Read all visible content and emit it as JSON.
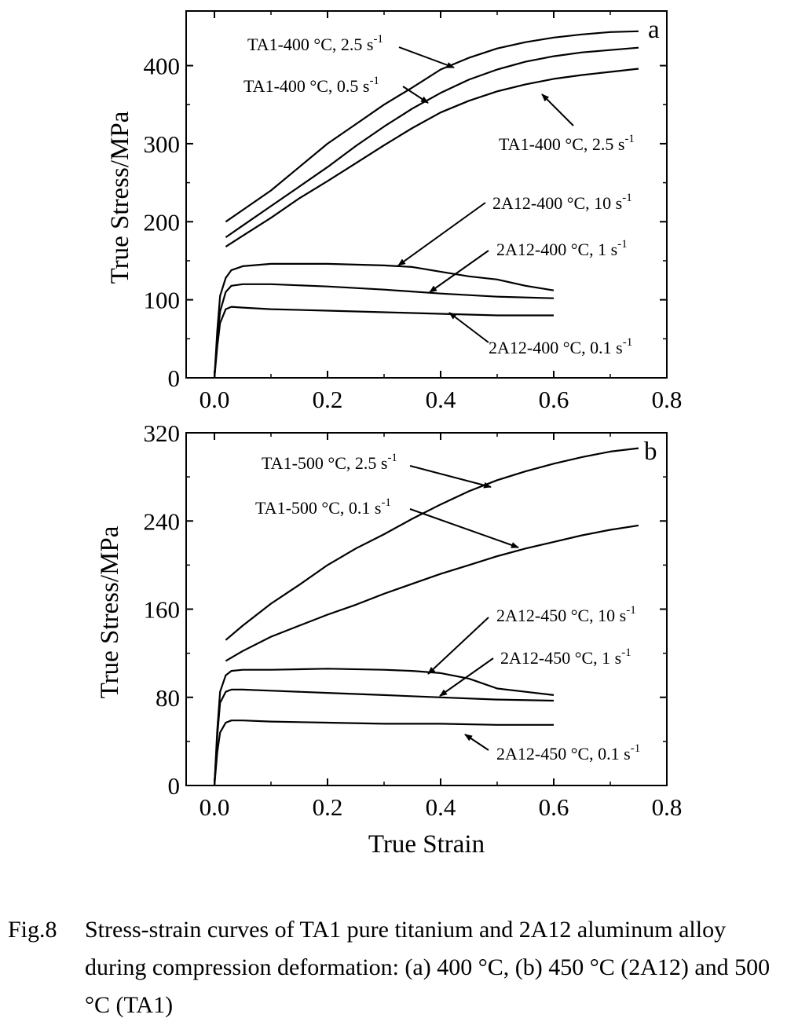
{
  "chart_data": [
    {
      "type": "line",
      "panel_label": "a",
      "xlabel": "",
      "ylabel": "True Stress/MPa",
      "xlim": [
        -0.05,
        0.8
      ],
      "ylim": [
        0,
        470
      ],
      "xticks": [
        "0.0",
        "0.2",
        "0.4",
        "0.6",
        "0.8"
      ],
      "yticks": [
        "0",
        "100",
        "200",
        "300",
        "400"
      ],
      "grid": false,
      "series": [
        {
          "name": "TA1-400 °C, 2.5 s",
          "name_sup": "-1",
          "x": [
            0.02,
            0.05,
            0.1,
            0.15,
            0.2,
            0.25,
            0.3,
            0.35,
            0.4,
            0.45,
            0.5,
            0.55,
            0.6,
            0.65,
            0.7,
            0.75
          ],
          "y": [
            200,
            215,
            240,
            270,
            300,
            325,
            350,
            372,
            395,
            410,
            422,
            430,
            436,
            440,
            443,
            444
          ]
        },
        {
          "name": "TA1-400 °C, 0.5 s",
          "name_sup": "-1",
          "x": [
            0.02,
            0.05,
            0.1,
            0.15,
            0.2,
            0.25,
            0.3,
            0.35,
            0.4,
            0.45,
            0.5,
            0.55,
            0.6,
            0.65,
            0.7,
            0.75
          ],
          "y": [
            180,
            195,
            220,
            245,
            270,
            297,
            322,
            345,
            365,
            382,
            395,
            405,
            412,
            417,
            420,
            423
          ]
        },
        {
          "name": "TA1-400 °C, 2.5 s",
          "name_sup": "-1",
          "x": [
            0.02,
            0.05,
            0.1,
            0.15,
            0.2,
            0.25,
            0.3,
            0.35,
            0.4,
            0.45,
            0.5,
            0.55,
            0.6,
            0.65,
            0.7,
            0.75
          ],
          "y": [
            168,
            182,
            205,
            230,
            252,
            275,
            298,
            320,
            340,
            355,
            367,
            376,
            383,
            388,
            392,
            396
          ]
        },
        {
          "name": "2A12-400 °C, 10 s",
          "name_sup": "-1",
          "x": [
            0.0,
            0.005,
            0.01,
            0.02,
            0.03,
            0.05,
            0.1,
            0.2,
            0.3,
            0.35,
            0.4,
            0.45,
            0.5,
            0.55,
            0.6
          ],
          "y": [
            0,
            60,
            105,
            128,
            138,
            143,
            146,
            146,
            144,
            142,
            136,
            130,
            126,
            118,
            112
          ]
        },
        {
          "name": "2A12-400 °C, 1 s",
          "name_sup": "-1",
          "x": [
            0.0,
            0.005,
            0.01,
            0.02,
            0.03,
            0.05,
            0.1,
            0.2,
            0.3,
            0.4,
            0.5,
            0.6
          ],
          "y": [
            0,
            50,
            85,
            110,
            118,
            120,
            120,
            117,
            113,
            108,
            104,
            102
          ]
        },
        {
          "name": "2A12-400 °C, 0.1 s",
          "name_sup": "-1",
          "x": [
            0.0,
            0.005,
            0.01,
            0.02,
            0.03,
            0.05,
            0.1,
            0.2,
            0.3,
            0.4,
            0.5,
            0.6
          ],
          "y": [
            0,
            40,
            70,
            88,
            91,
            90,
            88,
            86,
            84,
            82,
            80,
            80
          ]
        }
      ]
    },
    {
      "type": "line",
      "panel_label": "b",
      "xlabel": "True Strain",
      "ylabel": "True Stress/MPa",
      "xlim": [
        -0.05,
        0.8
      ],
      "ylim": [
        0,
        320
      ],
      "xticks": [
        "0.0",
        "0.2",
        "0.4",
        "0.6",
        "0.8"
      ],
      "yticks": [
        "0",
        "80",
        "160",
        "240",
        "320"
      ],
      "grid": false,
      "series": [
        {
          "name": "TA1-500 °C, 2.5 s",
          "name_sup": "-1",
          "x": [
            0.02,
            0.05,
            0.1,
            0.15,
            0.2,
            0.25,
            0.3,
            0.35,
            0.4,
            0.45,
            0.5,
            0.55,
            0.6,
            0.65,
            0.7,
            0.75
          ],
          "y": [
            132,
            145,
            165,
            182,
            200,
            215,
            228,
            242,
            255,
            267,
            277,
            285,
            292,
            298,
            303,
            306
          ]
        },
        {
          "name": "TA1-500 °C, 0.1 s",
          "name_sup": "-1",
          "x": [
            0.02,
            0.05,
            0.1,
            0.15,
            0.2,
            0.25,
            0.3,
            0.35,
            0.4,
            0.45,
            0.5,
            0.55,
            0.6,
            0.65,
            0.7,
            0.75
          ],
          "y": [
            113,
            122,
            135,
            145,
            155,
            164,
            174,
            183,
            192,
            200,
            208,
            215,
            221,
            227,
            232,
            236
          ]
        },
        {
          "name": "2A12-450 °C, 10 s",
          "name_sup": "-1",
          "x": [
            0.0,
            0.005,
            0.01,
            0.02,
            0.03,
            0.05,
            0.1,
            0.2,
            0.3,
            0.35,
            0.4,
            0.45,
            0.5,
            0.55,
            0.6
          ],
          "y": [
            0,
            50,
            85,
            100,
            104,
            105,
            105,
            106,
            105,
            104,
            102,
            97,
            88,
            85,
            82
          ]
        },
        {
          "name": "2A12-450 °C, 1 s",
          "name_sup": "-1",
          "x": [
            0.0,
            0.005,
            0.01,
            0.02,
            0.03,
            0.05,
            0.1,
            0.2,
            0.3,
            0.4,
            0.5,
            0.6
          ],
          "y": [
            0,
            45,
            75,
            85,
            87,
            87,
            86,
            84,
            82,
            80,
            78,
            77
          ]
        },
        {
          "name": "2A12-450 °C, 0.1 s",
          "name_sup": "-1",
          "x": [
            0.0,
            0.005,
            0.01,
            0.02,
            0.03,
            0.05,
            0.1,
            0.2,
            0.3,
            0.4,
            0.5,
            0.6
          ],
          "y": [
            0,
            30,
            48,
            57,
            59,
            59,
            58,
            57,
            56,
            56,
            55,
            55
          ]
        }
      ]
    }
  ],
  "caption": {
    "label": "Fig.8",
    "text": "Stress-strain curves of TA1 pure titanium and 2A12 aluminum alloy during compression deformation: (a) 400 °C, (b) 450 °C (2A12) and 500 °C (TA1)"
  }
}
